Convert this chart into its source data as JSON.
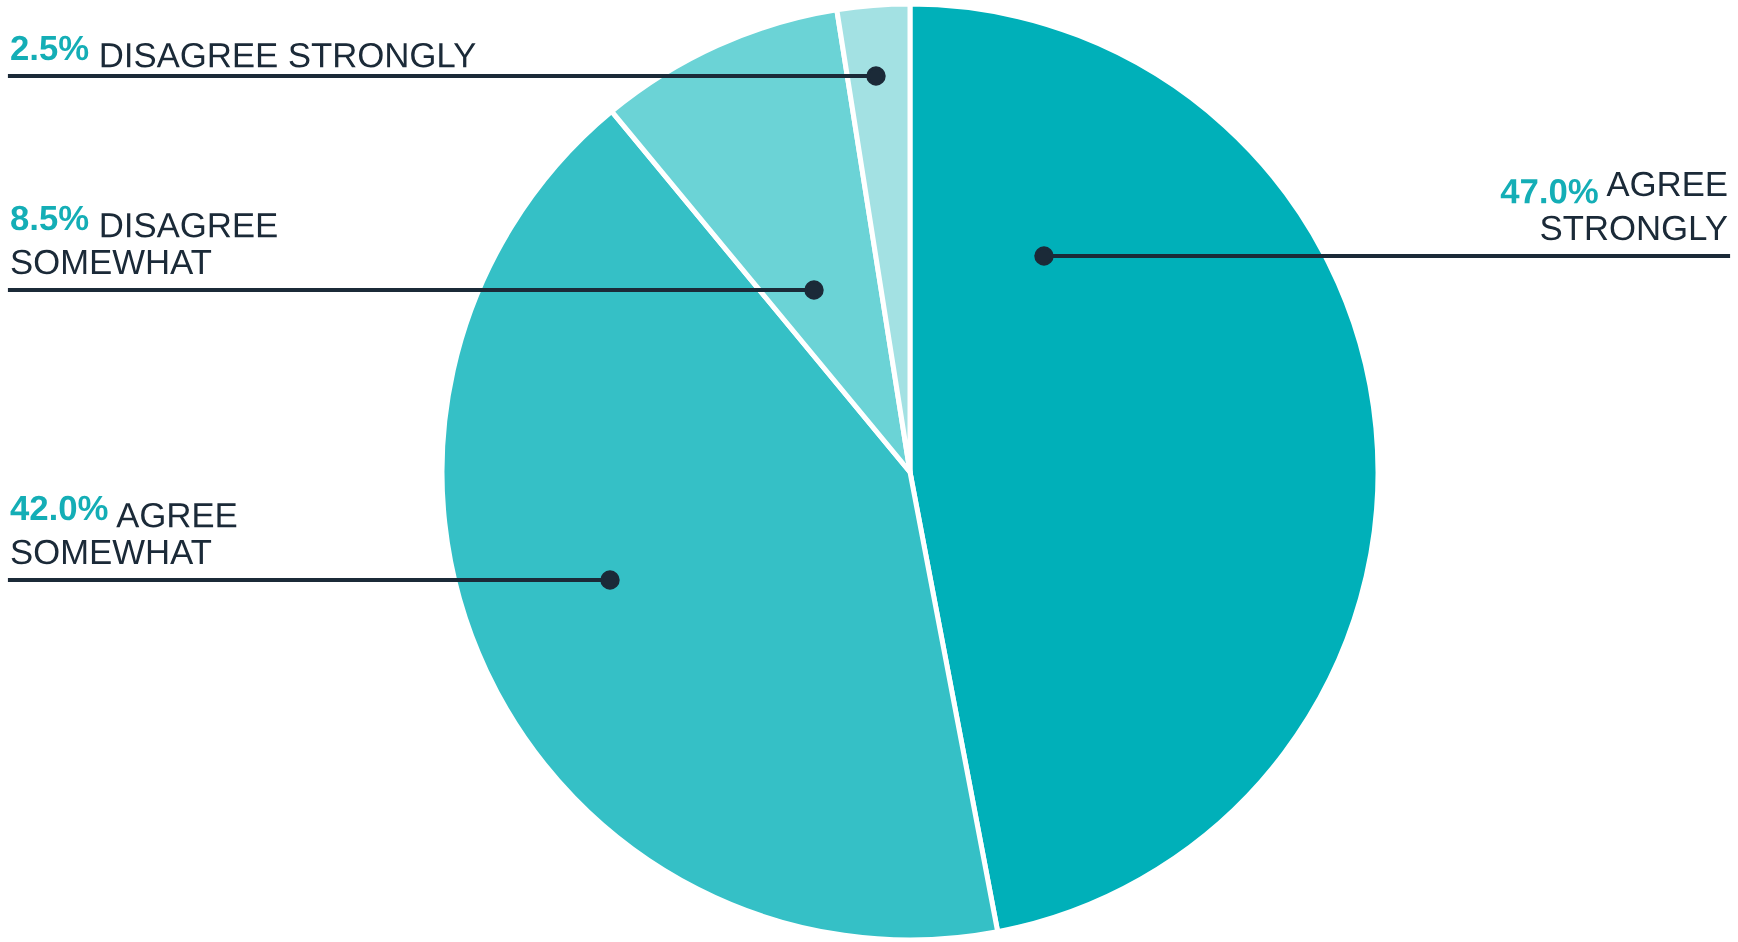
{
  "chart_data": {
    "type": "pie",
    "categories": [
      "AGREE\nSTRONGLY",
      "AGREE\nSOMEWHAT",
      "DISAGREE\nSOMEWHAT",
      "DISAGREE STRONGLY"
    ],
    "values": [
      47.0,
      42.0,
      8.5,
      2.5
    ],
    "value_labels": [
      "47.0%",
      "42.0%",
      "8.5%",
      "2.5%"
    ],
    "colors": [
      "#00b0b9",
      "#35c0c6",
      "#6bd3d6",
      "#a3e1e3"
    ]
  }
}
